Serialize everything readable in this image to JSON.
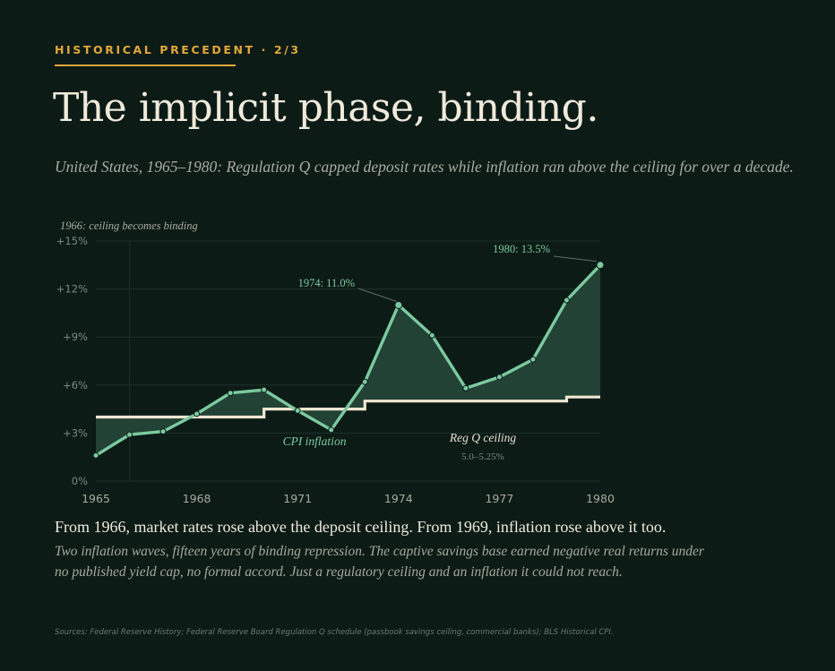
{
  "eyebrow": "HISTORICAL PRECEDENT · 2/3",
  "title": "The implicit phase, binding.",
  "subtitle": "United States, 1965–1980: Regulation Q capped deposit rates while inflation ran above the ceiling for over a decade.",
  "caption": {
    "lead": "From 1966, market rates rose above the deposit ceiling. From 1969, inflation rose above it too.",
    "body": "Two inflation waves, fifteen years of binding repression. The captive savings base earned negative real returns under no published yield cap, no formal accord. Just a regulatory ceiling and an inflation it could not reach."
  },
  "source": "Sources: Federal Reserve History; Federal Reserve Board Regulation Q schedule (passbook savings ceiling, commercial banks); BLS Historical CPI.",
  "colors": {
    "background": "#0c1b16",
    "accent": "#e2a73c",
    "cpi_line": "#7cc9a0",
    "gap_fill": "#234436",
    "ceiling_line": "#efe6d2"
  },
  "chart_data": {
    "type": "line",
    "title": "",
    "xlabel": "",
    "ylabel": "",
    "xlim": [
      1965,
      1980
    ],
    "ylim": [
      0,
      15
    ],
    "x_ticks": [
      "1965",
      "1968",
      "1971",
      "1974",
      "1977",
      "1980"
    ],
    "y_ticks": [
      "0%",
      "+3%",
      "+6%",
      "+9%",
      "+12%",
      "+15%"
    ],
    "grid": true,
    "series": [
      {
        "name": "CPI inflation",
        "x": [
          1965,
          1966,
          1967,
          1968,
          1969,
          1970,
          1971,
          1972,
          1973,
          1974,
          1975,
          1976,
          1977,
          1978,
          1979,
          1980
        ],
        "values": [
          1.6,
          2.9,
          3.1,
          4.2,
          5.5,
          5.7,
          4.4,
          3.2,
          6.2,
          11.0,
          9.1,
          5.8,
          6.5,
          7.6,
          11.3,
          13.5
        ]
      },
      {
        "name": "Reg Q ceiling",
        "note": "5.0–5.25%",
        "step_x": [
          1965,
          1970,
          1970,
          1973,
          1973,
          1979,
          1979,
          1980
        ],
        "step_values": [
          4.0,
          4.0,
          4.5,
          4.5,
          5.0,
          5.0,
          5.25,
          5.25
        ]
      }
    ],
    "annotations": {
      "binding": "1966: ceiling becomes binding",
      "peak_1974": "1974: 11.0%",
      "peak_1980": "1980: 13.5%"
    }
  }
}
